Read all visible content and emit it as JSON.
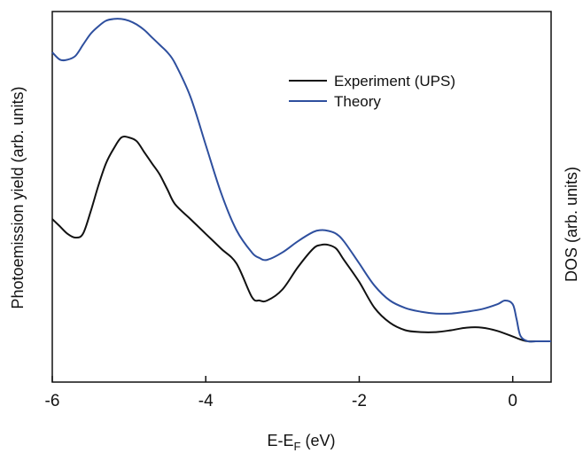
{
  "chart_data": {
    "type": "line",
    "xlabel": "E-E",
    "xlabel_sub": "F",
    "xlabel_unit": " (eV)",
    "ylabel_left": "Photoemission yield (arb. units)",
    "ylabel_right": "DOS (arb. units)",
    "xlim": [
      -6,
      0.5
    ],
    "ylim": [
      0,
      1
    ],
    "x_ticks": [
      -6,
      -4,
      -2,
      0
    ],
    "x_tick_labels": [
      "-6",
      "-4",
      "-2",
      "0"
    ],
    "y_ticks_shown": false,
    "legend_position": "top-right",
    "series": [
      {
        "name": "Experiment (UPS)",
        "color": "#111111",
        "points": [
          [
            -6.0,
            0.44
          ],
          [
            -5.9,
            0.42
          ],
          [
            -5.8,
            0.4
          ],
          [
            -5.7,
            0.39
          ],
          [
            -5.6,
            0.4
          ],
          [
            -5.5,
            0.46
          ],
          [
            -5.4,
            0.53
          ],
          [
            -5.3,
            0.59
          ],
          [
            -5.2,
            0.63
          ],
          [
            -5.1,
            0.66
          ],
          [
            -5.0,
            0.66
          ],
          [
            -4.9,
            0.65
          ],
          [
            -4.8,
            0.62
          ],
          [
            -4.7,
            0.59
          ],
          [
            -4.6,
            0.56
          ],
          [
            -4.5,
            0.52
          ],
          [
            -4.4,
            0.48
          ],
          [
            -4.2,
            0.44
          ],
          [
            -4.0,
            0.4
          ],
          [
            -3.8,
            0.36
          ],
          [
            -3.6,
            0.32
          ],
          [
            -3.4,
            0.23
          ],
          [
            -3.3,
            0.22
          ],
          [
            -3.2,
            0.22
          ],
          [
            -3.0,
            0.25
          ],
          [
            -2.8,
            0.31
          ],
          [
            -2.6,
            0.36
          ],
          [
            -2.5,
            0.37
          ],
          [
            -2.4,
            0.37
          ],
          [
            -2.3,
            0.36
          ],
          [
            -2.2,
            0.33
          ],
          [
            -2.0,
            0.27
          ],
          [
            -1.8,
            0.2
          ],
          [
            -1.6,
            0.16
          ],
          [
            -1.4,
            0.14
          ],
          [
            -1.2,
            0.135
          ],
          [
            -1.0,
            0.135
          ],
          [
            -0.8,
            0.14
          ],
          [
            -0.6,
            0.147
          ],
          [
            -0.4,
            0.147
          ],
          [
            -0.2,
            0.138
          ],
          [
            0.0,
            0.123
          ],
          [
            0.1,
            0.115
          ],
          [
            0.2,
            0.11
          ],
          [
            0.3,
            0.11
          ],
          [
            0.5,
            0.11
          ]
        ]
      },
      {
        "name": "Theory",
        "color": "#2e4f9e",
        "points": [
          [
            -6.0,
            0.89
          ],
          [
            -5.9,
            0.87
          ],
          [
            -5.8,
            0.87
          ],
          [
            -5.7,
            0.88
          ],
          [
            -5.6,
            0.91
          ],
          [
            -5.5,
            0.94
          ],
          [
            -5.4,
            0.96
          ],
          [
            -5.3,
            0.975
          ],
          [
            -5.2,
            0.98
          ],
          [
            -5.1,
            0.98
          ],
          [
            -5.0,
            0.975
          ],
          [
            -4.9,
            0.965
          ],
          [
            -4.8,
            0.95
          ],
          [
            -4.7,
            0.93
          ],
          [
            -4.6,
            0.91
          ],
          [
            -4.5,
            0.89
          ],
          [
            -4.4,
            0.86
          ],
          [
            -4.2,
            0.77
          ],
          [
            -4.0,
            0.64
          ],
          [
            -3.8,
            0.51
          ],
          [
            -3.6,
            0.41
          ],
          [
            -3.4,
            0.35
          ],
          [
            -3.3,
            0.335
          ],
          [
            -3.2,
            0.33
          ],
          [
            -3.0,
            0.35
          ],
          [
            -2.8,
            0.38
          ],
          [
            -2.6,
            0.405
          ],
          [
            -2.5,
            0.41
          ],
          [
            -2.4,
            0.408
          ],
          [
            -2.3,
            0.4
          ],
          [
            -2.2,
            0.38
          ],
          [
            -2.0,
            0.32
          ],
          [
            -1.8,
            0.26
          ],
          [
            -1.6,
            0.22
          ],
          [
            -1.4,
            0.2
          ],
          [
            -1.2,
            0.19
          ],
          [
            -1.0,
            0.185
          ],
          [
            -0.8,
            0.185
          ],
          [
            -0.6,
            0.19
          ],
          [
            -0.4,
            0.197
          ],
          [
            -0.2,
            0.21
          ],
          [
            -0.1,
            0.22
          ],
          [
            0.0,
            0.21
          ],
          [
            0.05,
            0.17
          ],
          [
            0.1,
            0.125
          ],
          [
            0.2,
            0.11
          ],
          [
            0.3,
            0.11
          ],
          [
            0.5,
            0.11
          ]
        ]
      }
    ]
  }
}
